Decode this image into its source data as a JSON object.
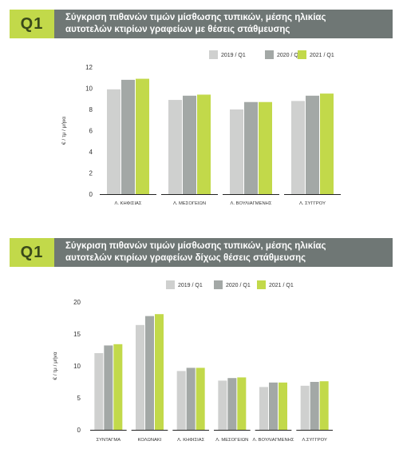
{
  "colors": {
    "s2019": "#cfd0cf",
    "s2020": "#a3a8a6",
    "s2021": "#c2d94a",
    "header": "#6f7775",
    "badge": "#c2d94a"
  },
  "sections": [
    {
      "badge": "Q1",
      "title_line1": "Σύγκριση πιθανών τιμών μίσθωσης τυπικών, μέσης ηλικίας",
      "title_line2": "αυτοτελών κτιρίων γραφείων με  θέσεις στάθμευσης"
    },
    {
      "badge": "Q1",
      "title_line1": "Σύγκριση πιθανών τιμών μίσθωσης τυπικών, μέσης ηλικίας",
      "title_line2": "αυτοτελών κτιρίων γραφείων δίχως θέσεις στάθμευσης"
    }
  ],
  "chart_data": [
    {
      "type": "bar",
      "ylabel": "€ / τμ / μήνα",
      "ylim": [
        0,
        12
      ],
      "yticks": [
        0,
        2,
        4,
        6,
        8,
        10,
        12
      ],
      "grid": false,
      "legend_position": "top-right",
      "categories": [
        "Λ. ΚΗΦΙΣΙΑΣ",
        "Λ. ΜΕΣΟΓΕΙΩΝ",
        "Λ. ΒΟΥΛΙΑΓΜΕΝΗΣ",
        "Λ. ΣΥΓΓΡΟΥ"
      ],
      "series": [
        {
          "name": "2019 / Q1",
          "values": [
            9.9,
            8.9,
            8.0,
            8.8
          ]
        },
        {
          "name": "2020 / Q1",
          "values": [
            10.8,
            9.3,
            8.7,
            9.3
          ]
        },
        {
          "name": "2021 / Q1",
          "values": [
            10.9,
            9.4,
            8.7,
            9.5
          ]
        }
      ]
    },
    {
      "type": "bar",
      "ylabel": "€ / τμ / μήνα",
      "ylim": [
        0,
        20
      ],
      "yticks": [
        0,
        5,
        10,
        15,
        20
      ],
      "grid": false,
      "legend_position": "top-right",
      "categories": [
        "ΣΥΝΤΑΓΜΑ",
        "ΚΟΛΩΝΑΚΙ",
        "Λ. ΚΗΦΙΣΙΑΣ",
        "Λ. ΜΕΣΟΓΕΙΩΝ",
        "Λ. ΒΟΥΛΙΑΓΜΕΝΗΣ",
        "Λ.ΣΥΓΓΡΟΥ"
      ],
      "series": [
        {
          "name": "2019 / Q1",
          "values": [
            12.0,
            16.4,
            9.2,
            7.7,
            6.7,
            6.9
          ]
        },
        {
          "name": "2020 / Q1",
          "values": [
            13.2,
            17.8,
            9.7,
            8.1,
            7.4,
            7.5
          ]
        },
        {
          "name": "2021 / Q1",
          "values": [
            13.4,
            18.1,
            9.7,
            8.2,
            7.4,
            7.6
          ]
        }
      ]
    }
  ]
}
